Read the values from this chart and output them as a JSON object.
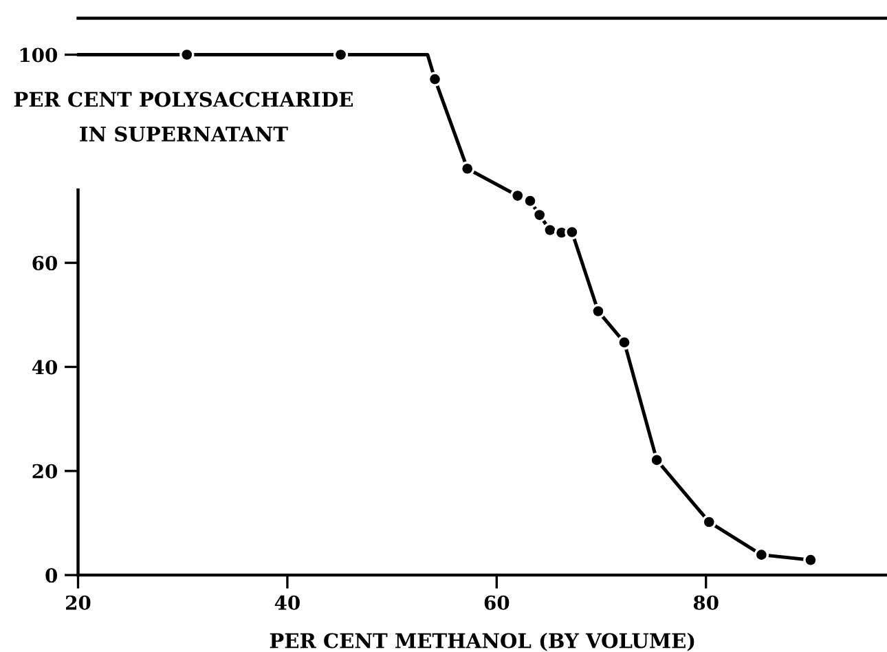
{
  "chart_data": {
    "type": "line",
    "xlabel": "PER CENT METHANOL (BY VOLUME)",
    "ylabel": "PER CENT POLYSACCHARIDE\nIN SUPERNATANT",
    "series": [
      {
        "color": "#000000",
        "marker": "none",
        "x": [
          20,
          30.4,
          45.1,
          53.4,
          54.1,
          57.2,
          62.0,
          63.2,
          64.1,
          65.1,
          66.2,
          67.2,
          69.7,
          72.2,
          75.3,
          80.3,
          85.3,
          90.0
        ],
        "values": [
          100,
          100,
          100,
          100,
          95.3,
          78.1,
          72.9,
          71.9,
          69.2,
          66.3,
          65.8,
          65.9,
          50.7,
          44.7,
          22.1,
          10.2,
          3.9,
          2.9
        ]
      },
      {
        "type": "scatter",
        "color": "#000000",
        "marker": "circle",
        "x": [
          30.4,
          45.1,
          54.1,
          57.2,
          62.0,
          63.2,
          64.1,
          65.1,
          66.2,
          67.2,
          69.7,
          72.2,
          75.3,
          80.3,
          85.3,
          90.0
        ],
        "values": [
          100,
          100,
          95.3,
          78.1,
          72.9,
          71.9,
          69.2,
          66.3,
          65.8,
          65.9,
          50.7,
          44.7,
          22.1,
          10.2,
          3.9,
          2.9
        ]
      }
    ],
    "xlim": [
      20,
      97.3
    ],
    "ylim": [
      0,
      107
    ],
    "xticks": [
      20,
      40,
      60,
      80
    ],
    "yticks": [
      0,
      20,
      40,
      60,
      100
    ],
    "grid": false,
    "legend": false
  }
}
